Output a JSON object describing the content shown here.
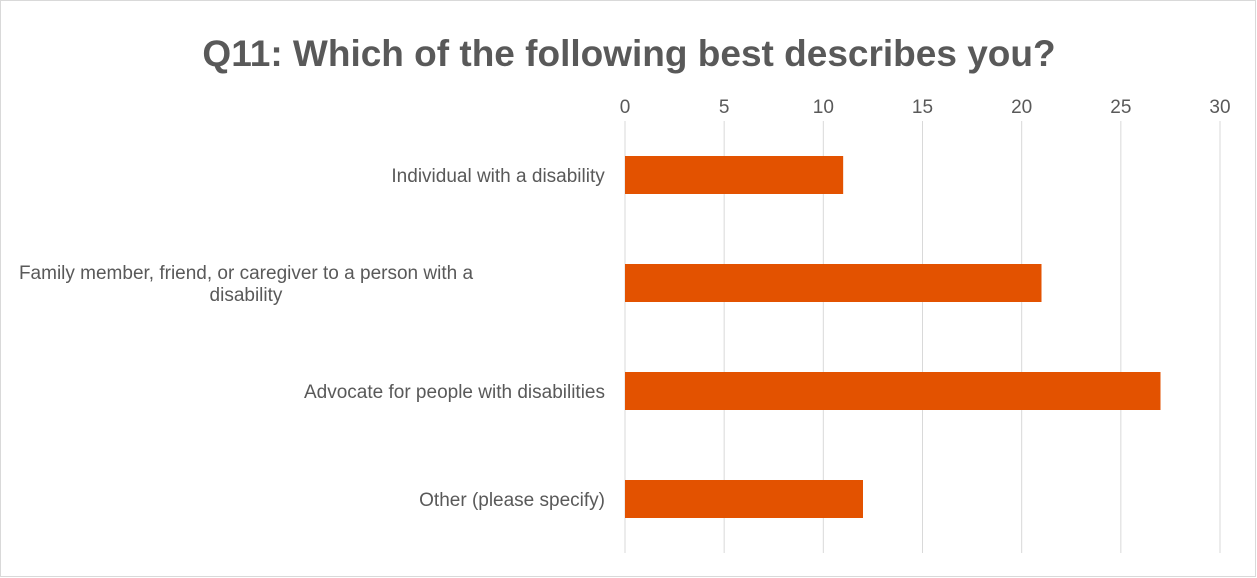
{
  "chart_data": {
    "type": "bar",
    "orientation": "horizontal",
    "title": "Q11: Which of the following best describes you?",
    "categories": [
      "Individual with a disability",
      "Family member, friend, or caregiver to a person with a disability",
      "Advocate for people with disabilities",
      "Other (please specify)"
    ],
    "category_label_lines": [
      [
        "Individual with a disability"
      ],
      [
        "Family member, friend, or caregiver to a person with a",
        "disability"
      ],
      [
        "Advocate for people with disabilities"
      ],
      [
        "Other (please specify)"
      ]
    ],
    "values": [
      11,
      21,
      27,
      12
    ],
    "xlim": [
      0,
      30
    ],
    "xticks": [
      0,
      5,
      10,
      15,
      20,
      25,
      30
    ],
    "xaxis_position": "top",
    "xlabel": "",
    "ylabel": "",
    "grid": true,
    "legend": "none",
    "bar_color": "#E35200",
    "grid_color": "#d9d9d9",
    "text_color": "#595959"
  }
}
